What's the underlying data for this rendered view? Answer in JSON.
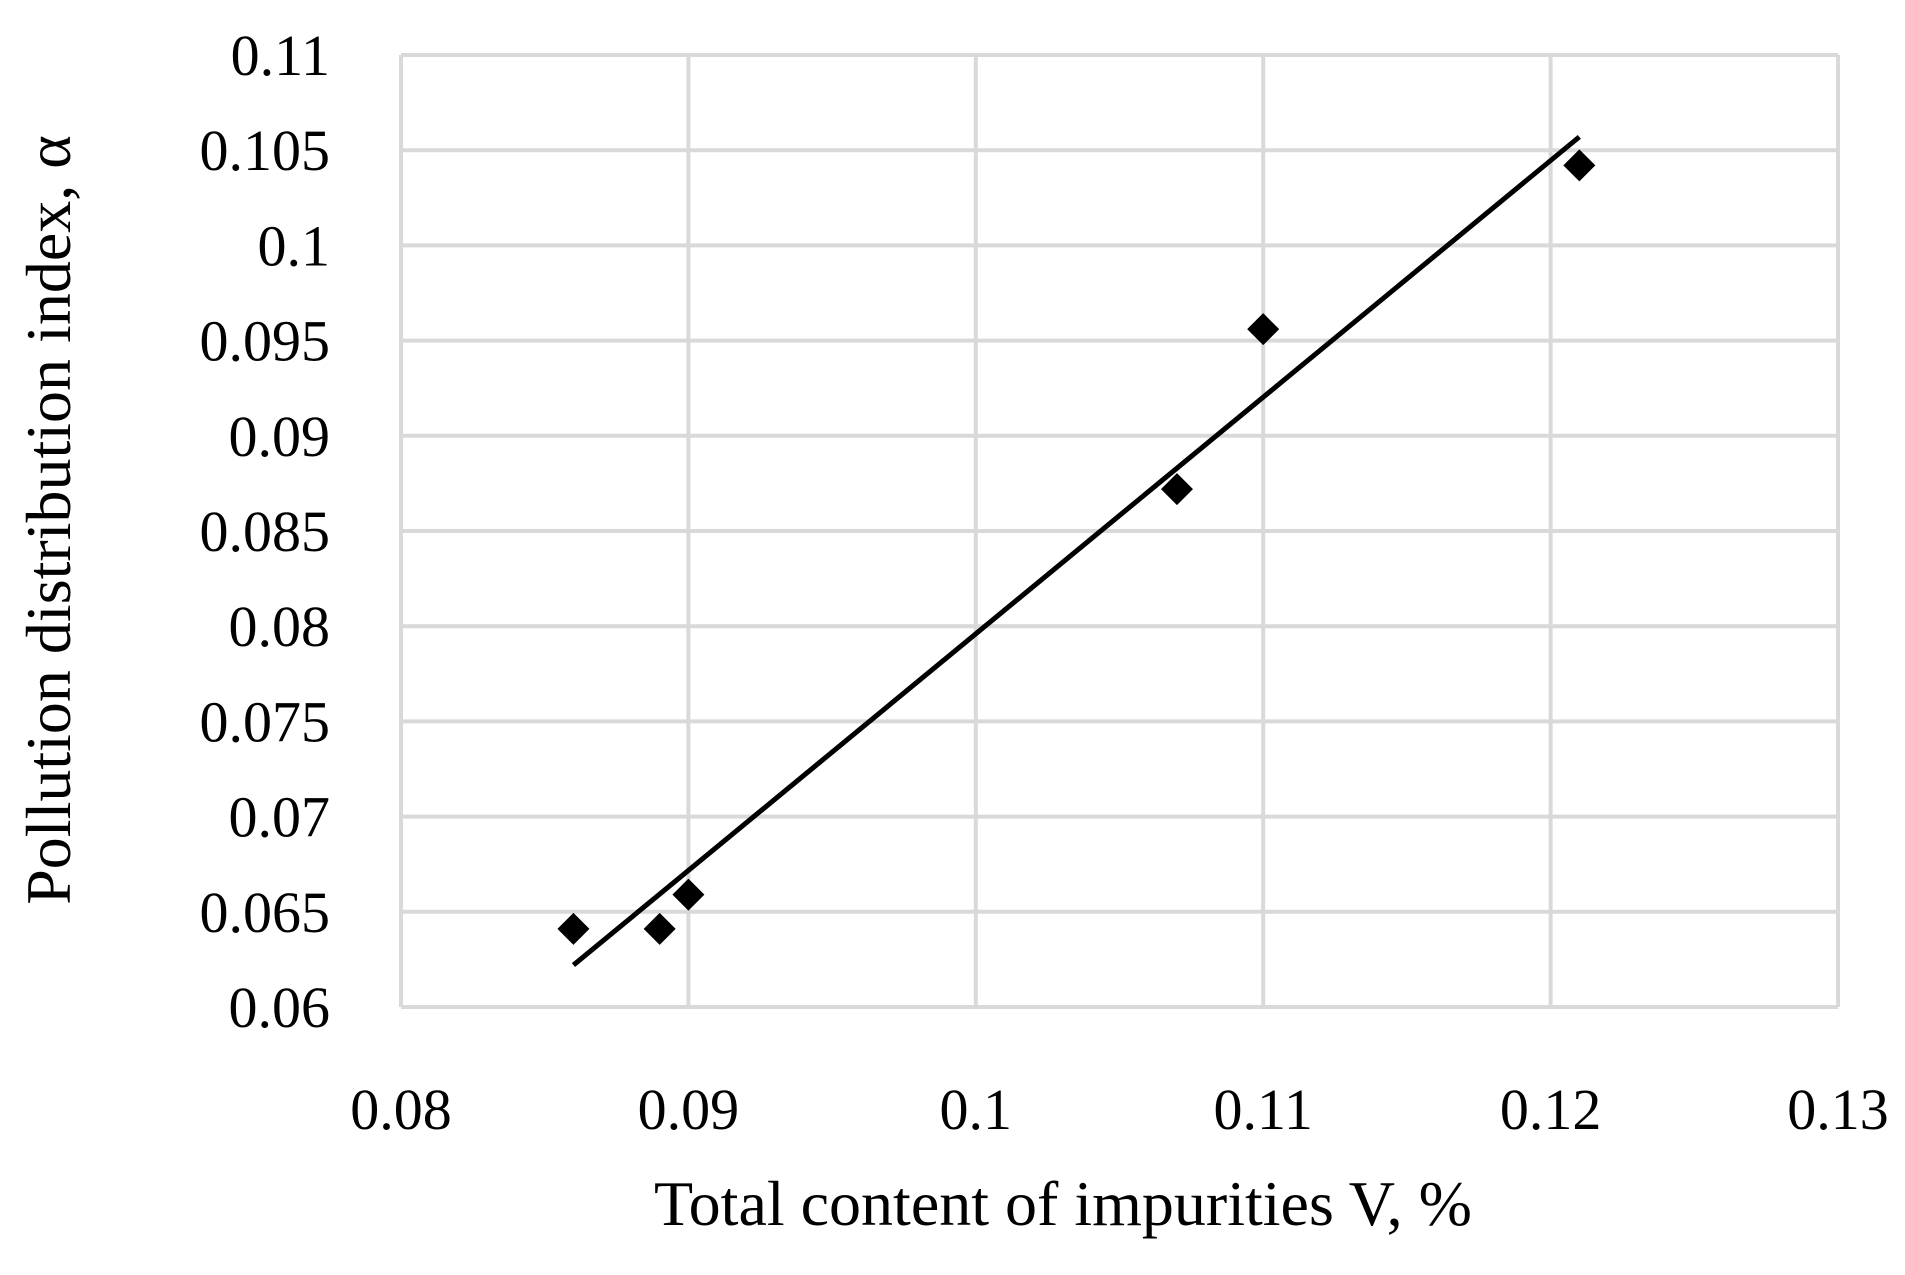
{
  "chart_data": {
    "type": "scatter",
    "title": "",
    "xlabel": "Total content of impurities V, %",
    "ylabel": "Pollution distribution index, α",
    "xlim": [
      0.08,
      0.13
    ],
    "ylim": [
      0.06,
      0.11
    ],
    "x_ticks": [
      "0.08",
      "0.09",
      "0.1",
      "0.11",
      "0.12",
      "0.13"
    ],
    "y_ticks": [
      "0.06",
      "0.065",
      "0.07",
      "0.075",
      "0.08",
      "0.085",
      "0.09",
      "0.095",
      "0.1",
      "0.105",
      "0.11"
    ],
    "grid": true,
    "marker": "diamond",
    "series": [
      {
        "points": [
          {
            "x": 0.086,
            "y": 0.0641
          },
          {
            "x": 0.089,
            "y": 0.0641
          },
          {
            "x": 0.09,
            "y": 0.0659
          },
          {
            "x": 0.107,
            "y": 0.0872
          },
          {
            "x": 0.11,
            "y": 0.0956
          },
          {
            "x": 0.121,
            "y": 0.1042
          }
        ]
      }
    ],
    "trendline": {
      "type": "linear",
      "x_range": [
        0.086,
        0.121
      ],
      "y_range": [
        0.0622,
        0.1057
      ]
    }
  }
}
